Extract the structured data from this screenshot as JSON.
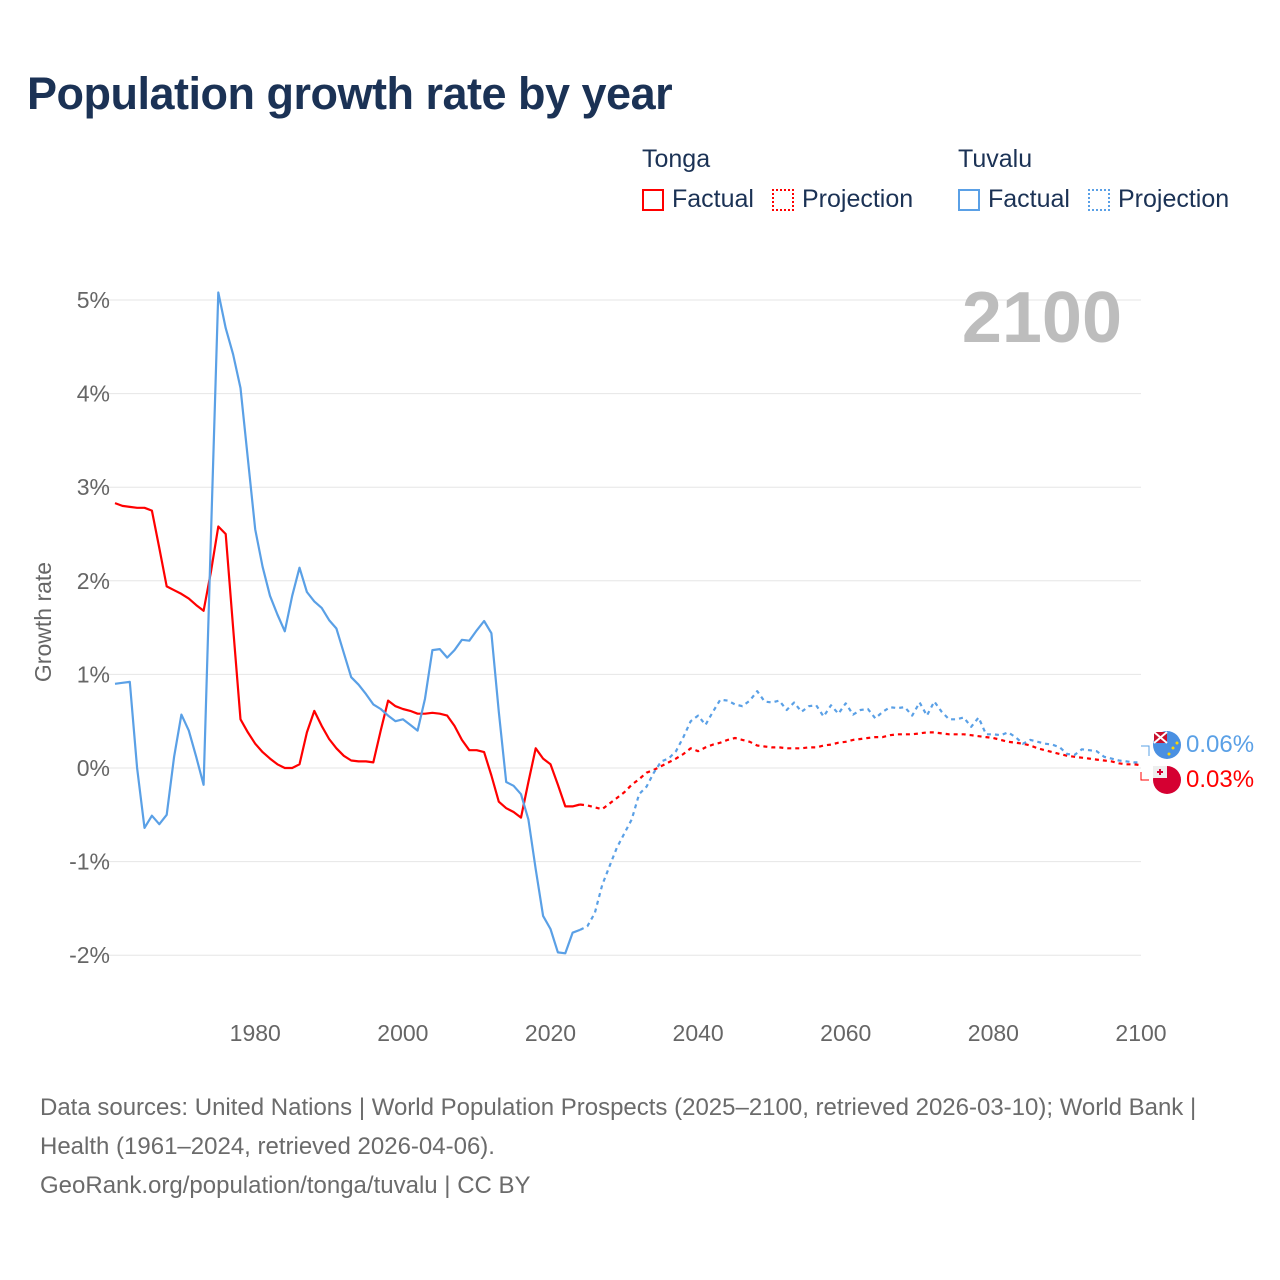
{
  "title": "Population growth rate by year",
  "legend": {
    "groups": [
      {
        "name": "Tonga",
        "factual": "Factual",
        "projection": "Projection",
        "color": "#ff0000"
      },
      {
        "name": "Tuvalu",
        "factual": "Factual",
        "projection": "Projection",
        "color": "#5aa0e6"
      }
    ]
  },
  "year_display": "2100",
  "end_labels": {
    "tuvalu": "0.06%",
    "tonga": "0.03%"
  },
  "footer": {
    "sources": "Data sources: United Nations | World Population Prospects (2025–2100, retrieved 2026-03-10); World Bank | Health (1961–2024, retrieved 2026-04-06).",
    "credit": "GeoRank.org/population/tonga/tuvalu | CC BY"
  },
  "chart_data": {
    "type": "line",
    "title": "Population growth rate by year",
    "xlabel": "",
    "ylabel": "Growth rate",
    "xlim": [
      1961,
      2100
    ],
    "ylim": [
      -2.4,
      5.2
    ],
    "xticks": [
      1980,
      2000,
      2020,
      2040,
      2060,
      2080,
      2100
    ],
    "xtick_labels": [
      "1980",
      "2000",
      "2020",
      "2040",
      "2060",
      "2080",
      "2100"
    ],
    "yticks": [
      -2,
      -1,
      0,
      1,
      2,
      3,
      4,
      5
    ],
    "ytick_labels": [
      "-2%",
      "-1%",
      "0%",
      "1%",
      "2%",
      "3%",
      "4%",
      "5%"
    ],
    "grid": true,
    "legend_position": "top-right",
    "series": [
      {
        "name": "Tonga Factual",
        "color": "#ff0000",
        "style": "solid",
        "start": 1961,
        "values": [
          2.83,
          2.8,
          2.79,
          2.78,
          2.78,
          2.75,
          2.35,
          1.94,
          1.9,
          1.86,
          1.81,
          1.74,
          1.68,
          2.1,
          2.58,
          2.5,
          1.5,
          0.52,
          0.38,
          0.26,
          0.17,
          0.1,
          0.04,
          0.0,
          0.0,
          0.04,
          0.38,
          0.61,
          0.45,
          0.31,
          0.21,
          0.13,
          0.08,
          0.07,
          0.07,
          0.06,
          0.4,
          0.72,
          0.66,
          0.63,
          0.61,
          0.58,
          0.58,
          0.59,
          0.58,
          0.56,
          0.45,
          0.3,
          0.19,
          0.19,
          0.17,
          -0.08,
          -0.36,
          -0.43,
          -0.47,
          -0.53,
          -0.15,
          0.21,
          0.1,
          0.04,
          -0.18,
          -0.41,
          -0.41,
          -0.39
        ]
      },
      {
        "name": "Tonga Projection",
        "color": "#ff0000",
        "style": "dotted",
        "start": 2024,
        "values": [
          -0.39,
          -0.4,
          -0.42,
          -0.44,
          -0.38,
          -0.32,
          -0.26,
          -0.18,
          -0.12,
          -0.05,
          -0.02,
          0.02,
          0.06,
          0.1,
          0.15,
          0.21,
          0.18,
          0.22,
          0.25,
          0.27,
          0.3,
          0.32,
          0.3,
          0.28,
          0.24,
          0.23,
          0.22,
          0.22,
          0.21,
          0.21,
          0.21,
          0.22,
          0.22,
          0.24,
          0.25,
          0.27,
          0.28,
          0.3,
          0.31,
          0.32,
          0.33,
          0.33,
          0.35,
          0.36,
          0.36,
          0.36,
          0.37,
          0.38,
          0.38,
          0.37,
          0.36,
          0.36,
          0.36,
          0.35,
          0.34,
          0.33,
          0.32,
          0.3,
          0.28,
          0.27,
          0.26,
          0.24,
          0.21,
          0.19,
          0.17,
          0.15,
          0.13,
          0.12,
          0.11,
          0.1,
          0.09,
          0.08,
          0.07,
          0.05,
          0.04,
          0.04,
          0.03
        ]
      },
      {
        "name": "Tuvalu Factual",
        "color": "#5aa0e6",
        "style": "solid",
        "start": 1961,
        "values": [
          0.9,
          0.91,
          0.92,
          0.0,
          -0.64,
          -0.51,
          -0.6,
          -0.5,
          0.12,
          0.57,
          0.4,
          0.12,
          -0.18,
          2.5,
          5.08,
          4.7,
          4.42,
          4.06,
          3.3,
          2.55,
          2.15,
          1.84,
          1.64,
          1.46,
          1.84,
          2.14,
          1.88,
          1.78,
          1.71,
          1.58,
          1.49,
          1.23,
          0.97,
          0.89,
          0.79,
          0.68,
          0.63,
          0.56,
          0.5,
          0.52,
          0.46,
          0.4,
          0.74,
          1.26,
          1.27,
          1.18,
          1.26,
          1.37,
          1.36,
          1.47,
          1.57,
          1.44,
          0.6,
          -0.15,
          -0.19,
          -0.28,
          -0.55,
          -1.08,
          -1.58,
          -1.72,
          -1.97,
          -1.98,
          -1.76,
          -1.73
        ]
      },
      {
        "name": "Tuvalu Projection",
        "color": "#5aa0e6",
        "style": "dotted",
        "start": 2024,
        "values": [
          -1.73,
          -1.69,
          -1.55,
          -1.25,
          -1.05,
          -0.85,
          -0.7,
          -0.55,
          -0.28,
          -0.2,
          -0.05,
          0.07,
          0.1,
          0.18,
          0.33,
          0.5,
          0.56,
          0.46,
          0.6,
          0.73,
          0.72,
          0.68,
          0.66,
          0.72,
          0.82,
          0.71,
          0.7,
          0.72,
          0.62,
          0.7,
          0.6,
          0.66,
          0.67,
          0.55,
          0.67,
          0.58,
          0.69,
          0.57,
          0.62,
          0.63,
          0.53,
          0.6,
          0.65,
          0.64,
          0.65,
          0.56,
          0.7,
          0.56,
          0.71,
          0.6,
          0.52,
          0.52,
          0.54,
          0.44,
          0.54,
          0.36,
          0.36,
          0.35,
          0.38,
          0.33,
          0.26,
          0.3,
          0.28,
          0.26,
          0.25,
          0.22,
          0.15,
          0.14,
          0.2,
          0.19,
          0.18,
          0.12,
          0.1,
          0.08,
          0.07,
          0.06,
          0.06
        ]
      }
    ]
  }
}
